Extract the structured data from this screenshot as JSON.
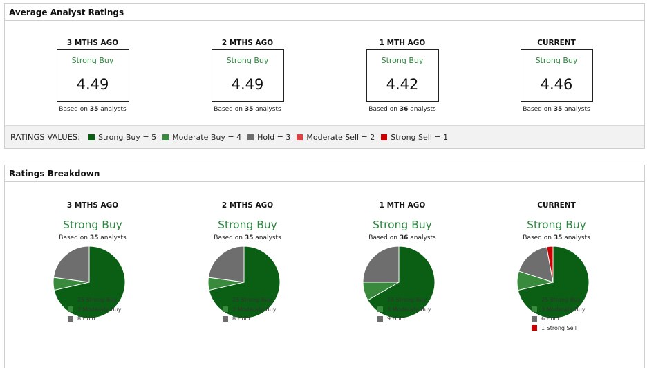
{
  "average_panel": {
    "title": "Average Analyst Ratings",
    "columns": [
      {
        "period": "3 MTHS AGO",
        "rating": "Strong Buy",
        "value": "4.49",
        "based_prefix": "Based on",
        "analysts": "35",
        "based_suffix": "analysts"
      },
      {
        "period": "2 MTHS AGO",
        "rating": "Strong Buy",
        "value": "4.49",
        "based_prefix": "Based on",
        "analysts": "35",
        "based_suffix": "analysts"
      },
      {
        "period": "1 MTH AGO",
        "rating": "Strong Buy",
        "value": "4.42",
        "based_prefix": "Based on",
        "analysts": "36",
        "based_suffix": "analysts"
      },
      {
        "period": "CURRENT",
        "rating": "Strong Buy",
        "value": "4.46",
        "based_prefix": "Based on",
        "analysts": "35",
        "based_suffix": "analysts"
      }
    ],
    "legend": {
      "title": "RATINGS VALUES:",
      "items": [
        {
          "label": "Strong Buy = 5",
          "color": "#0a5f14"
        },
        {
          "label": "Moderate Buy = 4",
          "color": "#3a8a3e"
        },
        {
          "label": "Hold = 3",
          "color": "#6e6e6e"
        },
        {
          "label": "Moderate Sell = 2",
          "color": "#d94343"
        },
        {
          "label": "Strong Sell = 1",
          "color": "#cc0000"
        }
      ]
    }
  },
  "breakdown_panel": {
    "title": "Ratings Breakdown",
    "columns": [
      {
        "period": "3 MTHS AGO",
        "consensus": "Strong Buy",
        "based_prefix": "Based on",
        "analysts": "35",
        "based_suffix": "analysts",
        "legend": [
          "25 Strong Buy",
          "2 Moderate Buy",
          "8 Hold"
        ]
      },
      {
        "period": "2 MTHS AGO",
        "consensus": "Strong Buy",
        "based_prefix": "Based on",
        "analysts": "35",
        "based_suffix": "analysts",
        "legend": [
          "25 Strong Buy",
          "2 Moderate Buy",
          "8 Hold"
        ]
      },
      {
        "period": "1 MTH AGO",
        "consensus": "Strong Buy",
        "based_prefix": "Based on",
        "analysts": "36",
        "based_suffix": "analysts",
        "legend": [
          "24 Strong Buy",
          "3 Moderate Buy",
          "9 Hold"
        ]
      },
      {
        "period": "CURRENT",
        "consensus": "Strong Buy",
        "based_prefix": "Based on",
        "analysts": "35",
        "based_suffix": "analysts",
        "legend": [
          "25 Strong Buy",
          "3 Moderate Buy",
          "6 Hold",
          "1 Strong Sell"
        ]
      }
    ]
  },
  "chart_data": [
    {
      "type": "pie",
      "title": "3 MTHS AGO",
      "categories": [
        "Strong Buy",
        "Moderate Buy",
        "Hold",
        "Strong Sell"
      ],
      "values": [
        25,
        2,
        8,
        0
      ],
      "colors": [
        "#0a5f14",
        "#3a8a3e",
        "#6e6e6e",
        "#cc0000"
      ]
    },
    {
      "type": "pie",
      "title": "2 MTHS AGO",
      "categories": [
        "Strong Buy",
        "Moderate Buy",
        "Hold",
        "Strong Sell"
      ],
      "values": [
        25,
        2,
        8,
        0
      ],
      "colors": [
        "#0a5f14",
        "#3a8a3e",
        "#6e6e6e",
        "#cc0000"
      ]
    },
    {
      "type": "pie",
      "title": "1 MTH AGO",
      "categories": [
        "Strong Buy",
        "Moderate Buy",
        "Hold",
        "Strong Sell"
      ],
      "values": [
        24,
        3,
        9,
        0
      ],
      "colors": [
        "#0a5f14",
        "#3a8a3e",
        "#6e6e6e",
        "#cc0000"
      ]
    },
    {
      "type": "pie",
      "title": "CURRENT",
      "categories": [
        "Strong Buy",
        "Moderate Buy",
        "Hold",
        "Strong Sell"
      ],
      "values": [
        25,
        3,
        6,
        1
      ],
      "colors": [
        "#0a5f14",
        "#3a8a3e",
        "#6e6e6e",
        "#cc0000"
      ]
    }
  ]
}
